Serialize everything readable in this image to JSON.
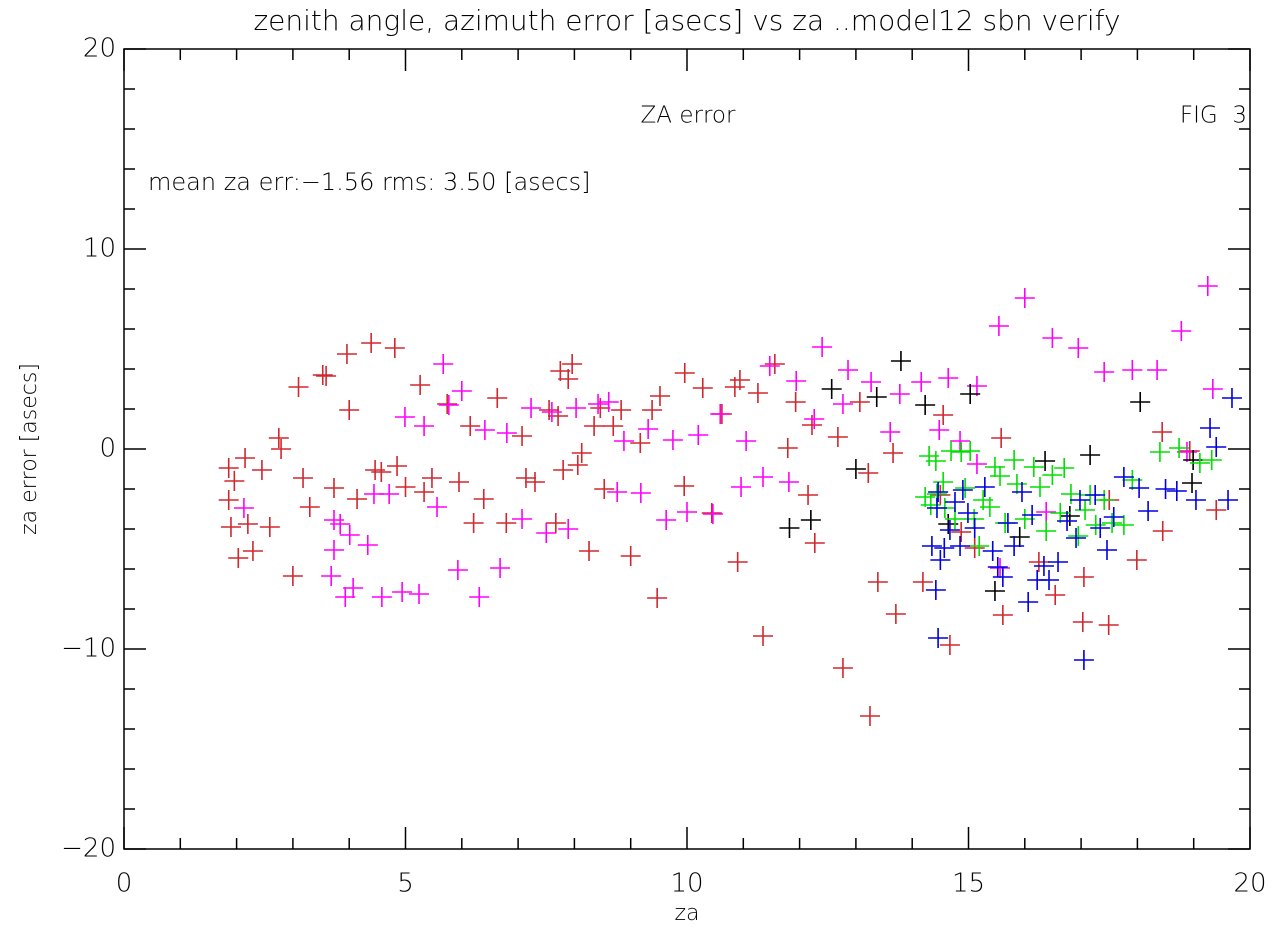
{
  "chart_data": {
    "type": "scatter",
    "title": "zenith angle, azimuth error [asecs] vs za ..model12 sbn verify",
    "subtitle": "ZA error",
    "annotations": [
      "FIG  3",
      "mean za err:−1.56 rms: 3.50 [asecs]"
    ],
    "xlabel": "za",
    "ylabel": "za error [asecs]",
    "xlim": [
      0,
      20
    ],
    "ylim": [
      -20,
      20
    ],
    "xticks": [
      0,
      5,
      10,
      15,
      20
    ],
    "yticks": [
      {
        "value": -20,
        "label": "−20"
      },
      {
        "value": -10,
        "label": "−10"
      },
      0,
      10,
      20
    ],
    "series": [
      {
        "color": "#d0282e",
        "x": [
          1.86,
          1.86,
          1.9,
          1.96,
          2.03,
          2.2,
          2.15,
          2.29,
          2.45,
          2.59,
          2.75,
          2.79,
          3.0,
          3.1,
          3.18,
          3.3,
          3.53,
          3.59,
          3.73,
          3.96,
          4.0,
          4.14,
          4.39,
          4.46,
          4.57,
          4.81,
          4.85,
          5.0,
          5.26,
          5.33,
          5.47,
          5.74,
          5.95,
          6.15,
          6.21,
          6.39,
          6.63,
          6.79,
          7.07,
          7.14,
          7.3,
          7.55,
          7.67,
          7.71,
          7.75,
          7.8,
          7.89,
          7.96,
          8.06,
          8.13,
          8.26,
          8.35,
          8.46,
          8.53,
          8.69,
          8.83,
          9.0,
          9.17,
          9.38,
          9.47,
          9.52,
          9.96,
          9.95,
          10.28,
          10.44,
          10.62,
          10.85,
          10.9,
          10.94,
          11.26,
          11.35,
          11.56,
          11.79,
          11.93,
          12.22,
          12.27,
          12.15,
          12.68,
          12.77,
          13.07,
          13.22,
          13.25,
          13.39,
          13.66,
          13.71,
          14.19,
          14.5,
          14.55,
          14.67,
          14.87,
          15.11,
          15.58,
          15.61,
          16.25,
          16.54,
          17.05,
          17.03,
          17.49,
          17.5,
          17.99,
          18.45,
          18.44,
          18.93,
          19.4
        ],
        "values": [
          -0.95,
          -2.55,
          -3.9,
          -1.6,
          -5.45,
          -3.75,
          -0.45,
          -5.1,
          -1.05,
          -3.9,
          0.55,
          0,
          -6.35,
          3.1,
          -1.45,
          -2.9,
          3.7,
          3.65,
          -1.95,
          4.75,
          1.95,
          -2.5,
          5.3,
          -1.05,
          -1.15,
          5.05,
          -0.85,
          -1.9,
          3.2,
          -2.15,
          -1.45,
          2.25,
          -1.65,
          1.15,
          -3.7,
          -2.5,
          2.55,
          -3.7,
          0.65,
          -1.45,
          -1.65,
          1.95,
          -3.7,
          1.65,
          3.9,
          -1.05,
          3.5,
          4.25,
          -0.8,
          -0.2,
          -5.1,
          1.15,
          2.05,
          -2.0,
          1.15,
          1.95,
          -5.35,
          0.3,
          1.95,
          -7.45,
          2.65,
          3.8,
          -1.85,
          3.05,
          -3.2,
          1.75,
          3.1,
          -5.65,
          3.45,
          2.8,
          -9.35,
          4.25,
          0.05,
          2.35,
          1.2,
          -4.7,
          -2.3,
          0.6,
          -10.95,
          2.35,
          -1.2,
          -13.35,
          -6.65,
          -0.2,
          -8.25,
          -6.65,
          -2.3,
          1.7,
          -9.8,
          -4.15,
          -4.95,
          0.55,
          -8.3,
          -5.65,
          -7.3,
          -6.4,
          -8.65,
          -8.8,
          -2.55,
          -5.55,
          -4.1,
          0.85,
          -0.1,
          -3.05
        ]
      },
      {
        "color": "#ff00ff",
        "x": [
          2.13,
          3.73,
          3.73,
          3.68,
          3.84,
          3.93,
          4.07,
          4.01,
          4.33,
          4.44,
          4.71,
          4.58,
          4.94,
          4.99,
          5.24,
          5.33,
          5.56,
          5.67,
          5.77,
          5.93,
          6.0,
          6.31,
          6.41,
          6.68,
          6.8,
          7.07,
          7.23,
          7.5,
          7.6,
          7.89,
          8.03,
          8.42,
          8.61,
          8.76,
          8.88,
          9.18,
          9.31,
          9.63,
          9.75,
          10.0,
          10.2,
          10.46,
          10.59,
          10.96,
          11.05,
          11.35,
          11.47,
          11.81,
          11.94,
          12.26,
          12.4,
          12.77,
          12.86,
          13.27,
          13.61,
          13.78,
          14.16,
          14.48,
          14.64,
          14.85,
          15.15,
          15.15,
          15.54,
          15.56,
          16.0,
          16.38,
          16.49,
          16.95,
          17.41,
          17.91,
          18.35,
          18.78,
          19.25,
          19.34,
          18.88
        ],
        "values": [
          -2.95,
          -3.55,
          -5.05,
          -6.35,
          -3.75,
          -7.4,
          -6.95,
          -4.3,
          -4.8,
          -2.25,
          -2.25,
          -7.4,
          -7.15,
          1.6,
          -7.25,
          1.15,
          -2.9,
          4.25,
          2.2,
          -6.05,
          2.9,
          -7.4,
          0.95,
          -5.95,
          0.8,
          -3.5,
          2.05,
          -4.2,
          1.85,
          -4.0,
          2.05,
          2.25,
          2.35,
          -2.15,
          0.4,
          -2.2,
          1.0,
          -3.55,
          0.45,
          -3.15,
          0.7,
          -3.25,
          1.75,
          -1.9,
          0.4,
          -1.4,
          4.15,
          -1.65,
          3.4,
          1.5,
          5.1,
          2.25,
          3.95,
          3.35,
          0.85,
          2.75,
          3.35,
          0.95,
          3.55,
          0.4,
          3.15,
          -0.75,
          6.15,
          -5.95,
          7.55,
          -3.15,
          5.55,
          5.05,
          3.85,
          3.95,
          3.95,
          5.9,
          8.15,
          3.0,
          -0.15
        ]
      },
      {
        "color": "#000000",
        "x": [
          11.82,
          12.2,
          12.57,
          13.0,
          13.37,
          13.8,
          14.23,
          14.64,
          15.03,
          15.47,
          15.91,
          16.36,
          16.8,
          17.16,
          18.05,
          18.99,
          18.97
        ],
        "values": [
          -3.95,
          -3.55,
          3.0,
          -1.0,
          2.6,
          4.4,
          2.2,
          -3.75,
          2.75,
          -7.1,
          -4.4,
          -0.6,
          -3.35,
          -0.3,
          2.35,
          -0.55,
          -1.7
        ]
      },
      {
        "color": "#00e000",
        "x": [
          14.23,
          14.3,
          14.33,
          14.42,
          14.44,
          14.55,
          14.58,
          14.69,
          14.76,
          14.87,
          14.94,
          15.03,
          15.1,
          15.19,
          15.26,
          15.38,
          15.47,
          15.56,
          15.65,
          15.81,
          15.86,
          16.0,
          16.16,
          16.27,
          16.38,
          16.49,
          16.63,
          16.7,
          16.82,
          16.95,
          17.07,
          17.16,
          17.26,
          17.41,
          17.55,
          17.76,
          17.91,
          18.4,
          18.74,
          19.32,
          19.11
        ],
        "values": [
          -2.4,
          -0.35,
          -2.8,
          -0.6,
          -2.25,
          -1.65,
          -2.95,
          -0.1,
          -3.5,
          -0.15,
          -1.95,
          -0.1,
          -3.5,
          -4.85,
          -2.55,
          -2.9,
          -0.9,
          -1.35,
          -3.7,
          -0.55,
          -1.75,
          -3.5,
          -0.9,
          -1.9,
          -4.1,
          -1.3,
          -3.2,
          -0.95,
          -2.25,
          -4.35,
          -3.05,
          -2.3,
          -3.8,
          -2.55,
          -3.7,
          -3.8,
          -1.55,
          -0.15,
          0.05,
          -0.55,
          -0.7
        ]
      },
      {
        "color": "#0000e0",
        "x": [
          14.35,
          14.44,
          14.46,
          14.42,
          14.5,
          14.46,
          14.57,
          14.67,
          14.76,
          14.85,
          14.9,
          14.99,
          15.11,
          15.29,
          15.43,
          15.52,
          15.61,
          15.7,
          15.81,
          15.95,
          16.06,
          16.13,
          16.22,
          16.34,
          16.43,
          16.59,
          16.75,
          16.91,
          16.98,
          17.05,
          17.25,
          17.34,
          17.46,
          17.58,
          17.76,
          18.03,
          18.19,
          18.5,
          18.7,
          19.04,
          19.29,
          19.4,
          19.61,
          19.68
        ],
        "values": [
          -4.85,
          -2.95,
          -2.15,
          -7.05,
          -5.55,
          -9.45,
          -4.95,
          -4.05,
          -2.65,
          -4.85,
          -2.05,
          -3.2,
          -3.95,
          -1.9,
          -5.1,
          -5.9,
          -6.4,
          -3.7,
          -4.85,
          -2.15,
          -7.65,
          -3.3,
          -6.55,
          -5.85,
          -6.55,
          -5.65,
          -3.6,
          -4.45,
          -2.55,
          -10.55,
          -2.3,
          -3.95,
          -5.05,
          -3.4,
          -1.4,
          -1.95,
          -3.1,
          -2.0,
          -2.1,
          -2.55,
          1.05,
          0.1,
          -2.55,
          2.55
        ]
      }
    ]
  }
}
